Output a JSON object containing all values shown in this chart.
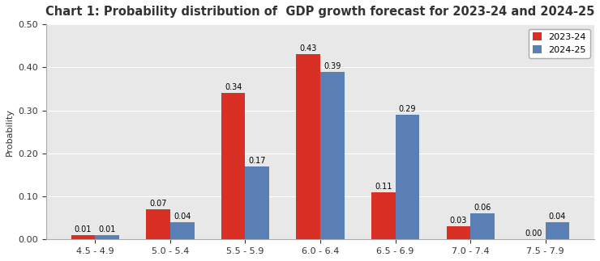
{
  "title": "Chart 1: Probability distribution of  GDP growth forecast for 2023-24 and 2024-25",
  "categories": [
    "4.5 - 4.9",
    "5.0 - 5.4",
    "5.5 - 5.9",
    "6.0 - 6.4",
    "6.5 - 6.9",
    "7.0 - 7.4",
    "7.5 - 7.9"
  ],
  "series_2023": [
    0.01,
    0.07,
    0.34,
    0.43,
    0.11,
    0.03,
    0.0
  ],
  "series_2024": [
    0.01,
    0.04,
    0.17,
    0.39,
    0.29,
    0.06,
    0.04
  ],
  "color_2023": "#d93025",
  "color_2024": "#5a7fb5",
  "legend_2023": "2023-24",
  "legend_2024": "2024-25",
  "ylabel": "Probability",
  "ylim": [
    0,
    0.5
  ],
  "yticks": [
    0.0,
    0.1,
    0.2,
    0.3,
    0.4,
    0.5
  ],
  "bar_width": 0.32,
  "label_fontsize": 7,
  "title_fontsize": 10.5,
  "axis_fontsize": 8,
  "background_color": "#ffffff",
  "plot_bg_color": "#e8e8e8",
  "grid_color": "#ffffff"
}
